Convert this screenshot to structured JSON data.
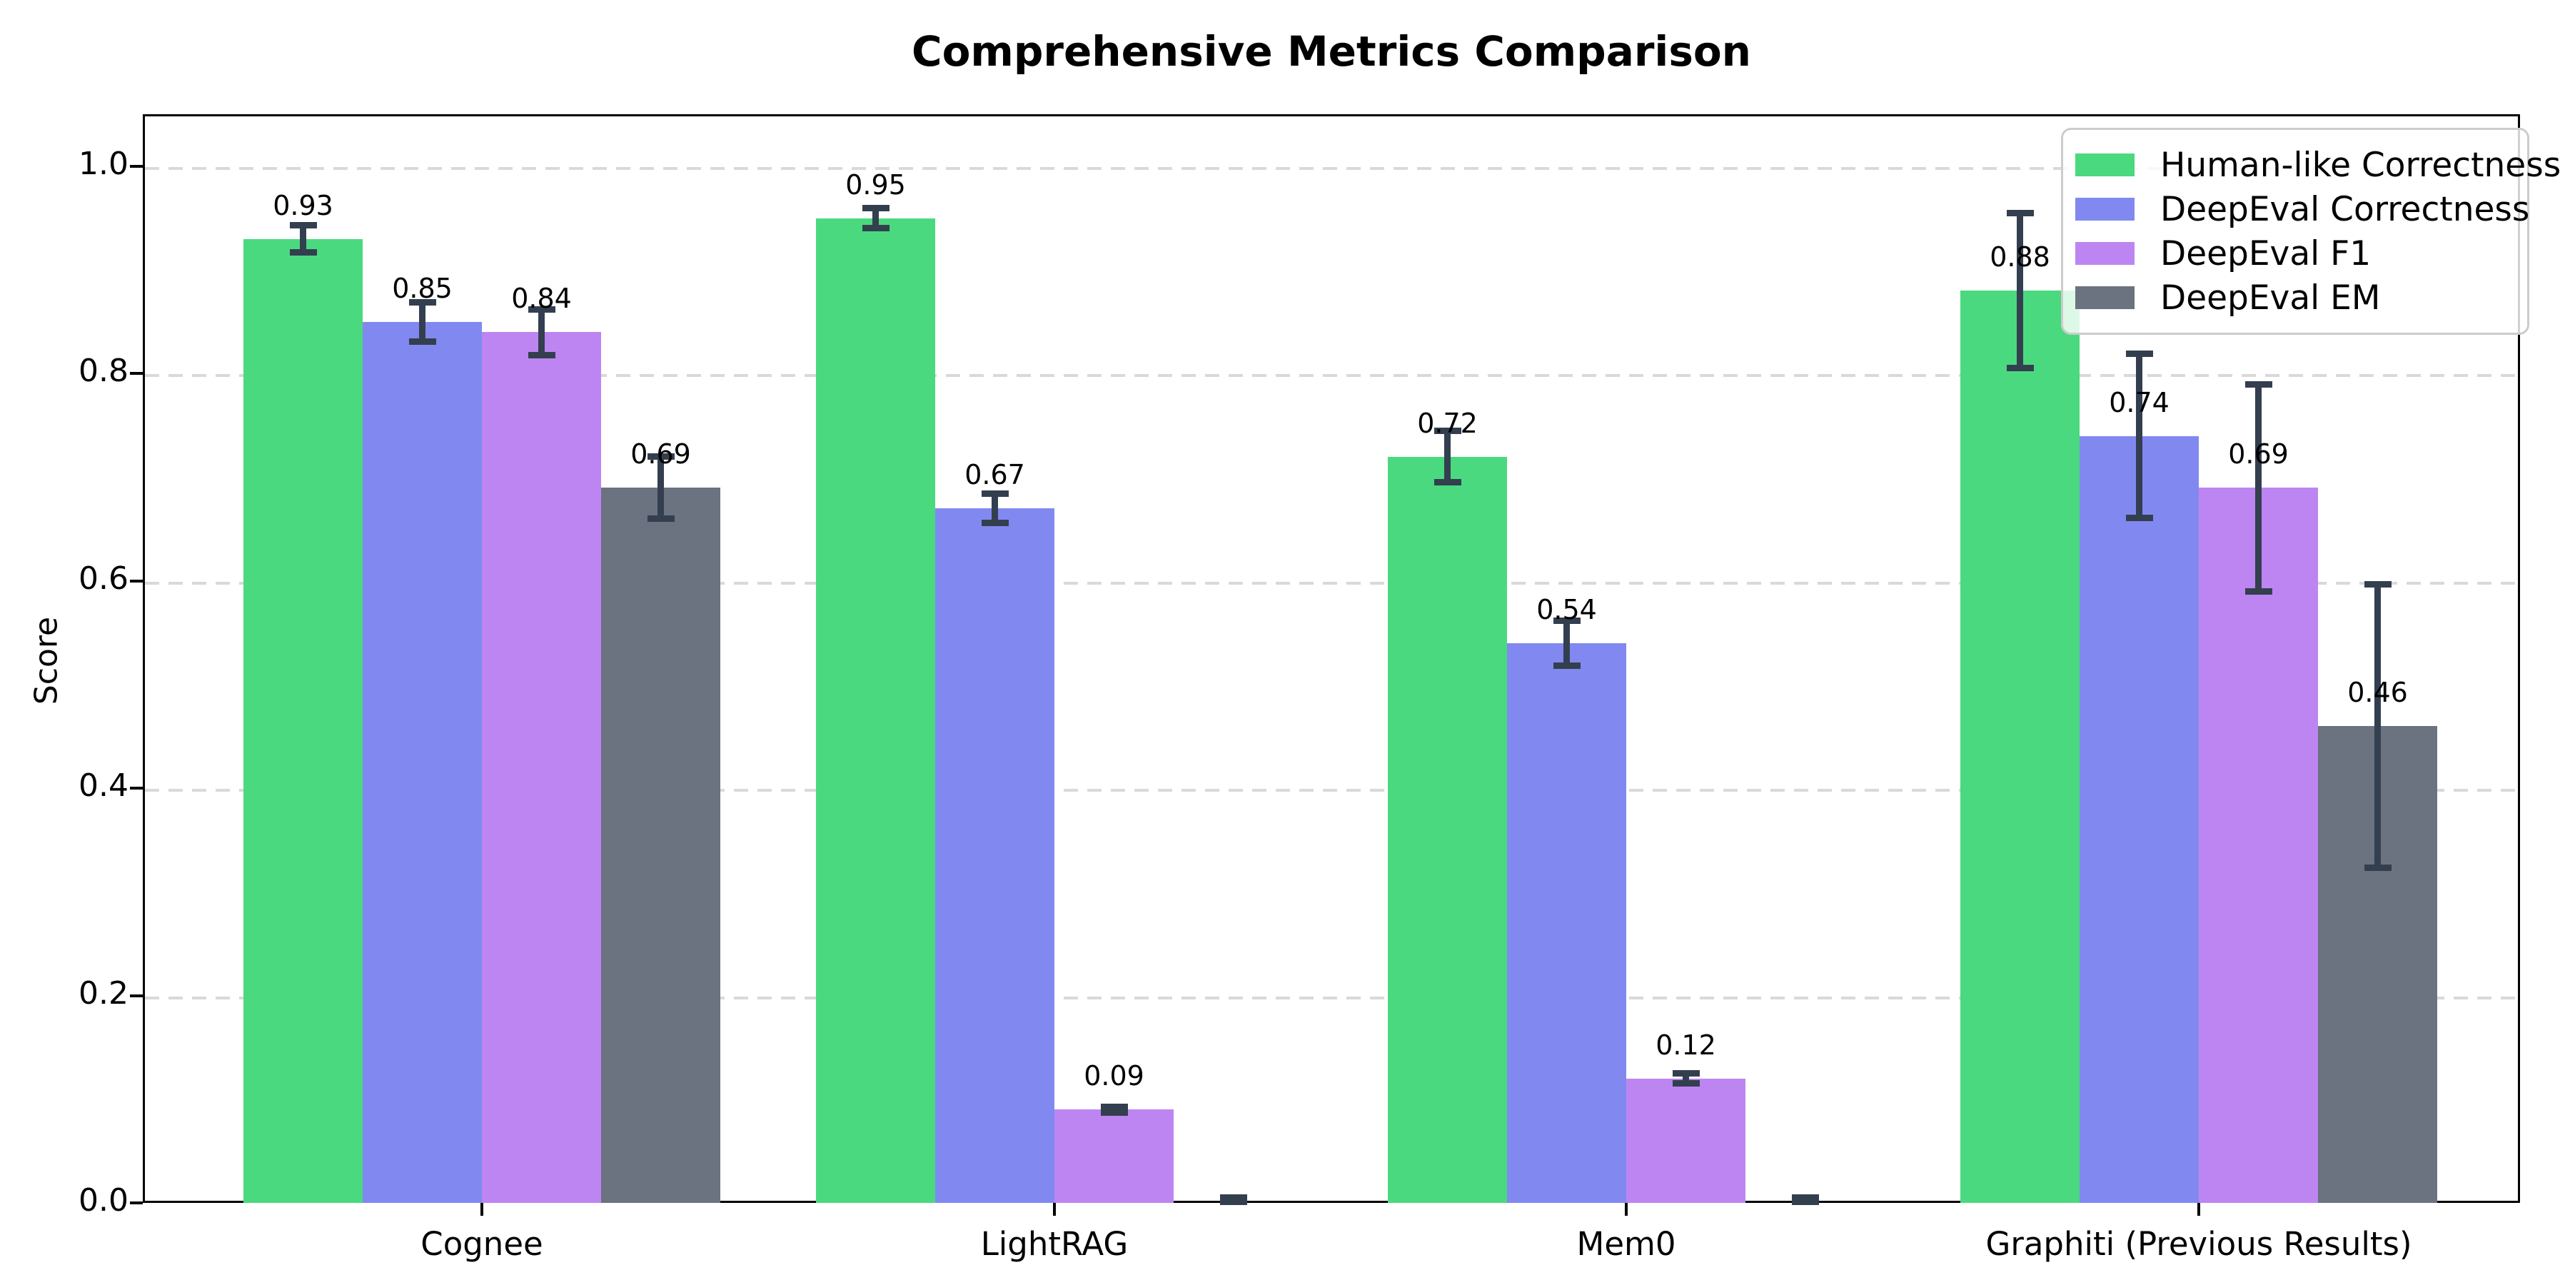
{
  "title": "Comprehensive Metrics Comparison",
  "chart_data": {
    "type": "bar",
    "title": "Comprehensive Metrics Comparison",
    "xlabel": "",
    "ylabel": "Score",
    "ylim": [
      0.0,
      1.05
    ],
    "y_ticks": [
      "0.0",
      "0.2",
      "0.4",
      "0.6",
      "0.8",
      "1.0"
    ],
    "grid": "horizontal dashed",
    "legend_position": "upper right",
    "background_color": "#ffffff",
    "error_bar_color": "#333f4f",
    "categories": [
      "Cognee",
      "LightRAG",
      "Mem0",
      "Graphiti (Previous Results)"
    ],
    "series": [
      {
        "name": "Human-like Correctness",
        "color": "#4ad97f",
        "values": [
          0.93,
          0.95,
          0.72,
          0.88
        ],
        "errors": [
          0.016,
          0.013,
          0.028,
          0.078
        ],
        "labels": [
          "0.93",
          "0.95",
          "0.72",
          "0.88"
        ]
      },
      {
        "name": "DeepEval Correctness",
        "color": "#8189f0",
        "values": [
          0.85,
          0.67,
          0.54,
          0.74
        ],
        "errors": [
          0.022,
          0.017,
          0.025,
          0.082
        ],
        "labels": [
          "0.85",
          "0.67",
          "0.54",
          "0.74"
        ]
      },
      {
        "name": "DeepEval F1",
        "color": "#bd85f2",
        "values": [
          0.84,
          0.09,
          0.12,
          0.69
        ],
        "errors": [
          0.025,
          0.006,
          0.008,
          0.103
        ],
        "labels": [
          "0.84",
          "0.09",
          "0.12",
          "0.69"
        ]
      },
      {
        "name": "DeepEval EM",
        "color": "#6b7280",
        "values": [
          0.69,
          0.0,
          0.0,
          0.46
        ],
        "errors": [
          0.033,
          0.004,
          0.004,
          0.14
        ],
        "labels": [
          "0.69",
          null,
          null,
          "0.46"
        ]
      }
    ]
  }
}
